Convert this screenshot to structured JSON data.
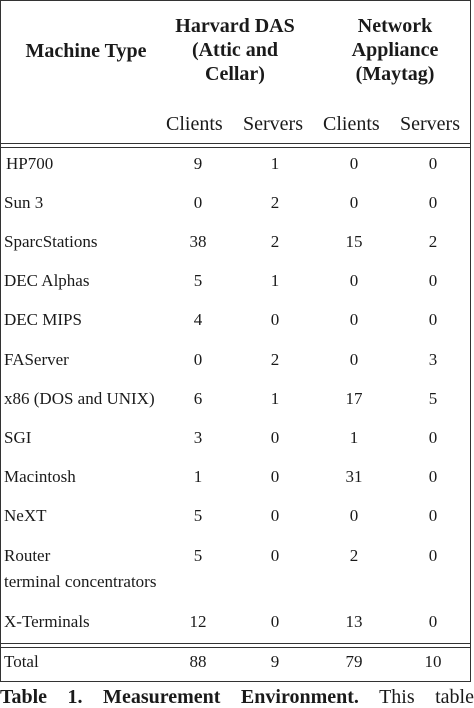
{
  "header": {
    "machine_type": "Machine Type",
    "group1": [
      "Harvard DAS",
      "(Attic and",
      "Cellar)"
    ],
    "group2": [
      "Network",
      "Appliance",
      "(Maytag)"
    ],
    "subcols": [
      "Clients",
      "Servers",
      "Clients",
      "Servers"
    ]
  },
  "rows": [
    {
      "label": "HP700",
      "values": [
        "9",
        "1",
        "0",
        "0"
      ]
    },
    {
      "label": "Sun 3",
      "values": [
        "0",
        "2",
        "0",
        "0"
      ]
    },
    {
      "label": "SparcStations",
      "values": [
        "38",
        "2",
        "15",
        "2"
      ]
    },
    {
      "label": "DEC Alphas",
      "values": [
        "5",
        "1",
        "0",
        "0"
      ]
    },
    {
      "label": "DEC MIPS",
      "values": [
        "4",
        "0",
        "0",
        "0"
      ]
    },
    {
      "label": "FAServer",
      "values": [
        "0",
        "2",
        "0",
        "3"
      ]
    },
    {
      "label": "x86 (DOS and UNIX)",
      "values": [
        "6",
        "1",
        "17",
        "5"
      ]
    },
    {
      "label": "SGI",
      "values": [
        "3",
        "0",
        "1",
        "0"
      ]
    },
    {
      "label": "Macintosh",
      "values": [
        "1",
        "0",
        "31",
        "0"
      ]
    },
    {
      "label": "NeXT",
      "values": [
        "5",
        "0",
        "0",
        "0"
      ]
    },
    {
      "label": "Router",
      "label2": "terminal concentrators",
      "values": [
        "5",
        "0",
        "2",
        "0"
      ]
    },
    {
      "label": "X-Terminals",
      "values": [
        "12",
        "0",
        "13",
        "0"
      ]
    }
  ],
  "total": {
    "label": "Total",
    "values": [
      "88",
      "9",
      "79",
      "10"
    ]
  },
  "caption": {
    "bold": "Table 1. Measurement Environment.",
    "rest": "This table"
  }
}
